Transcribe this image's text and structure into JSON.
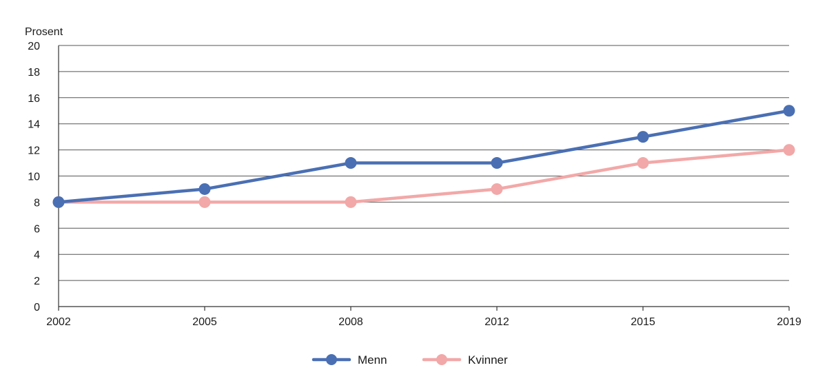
{
  "chart_data": {
    "type": "line",
    "ylabel": "Prosent",
    "xlabel": "",
    "title": "",
    "categories": [
      "2002",
      "2005",
      "2008",
      "2012",
      "2015",
      "2019"
    ],
    "ylim": [
      0,
      20
    ],
    "yticks": [
      0,
      2,
      4,
      6,
      8,
      10,
      12,
      14,
      16,
      18,
      20
    ],
    "grid": true,
    "legend_position": "bottom-center",
    "series": [
      {
        "name": "Menn",
        "color": "#4a6fb3",
        "values": [
          8,
          9,
          11,
          11,
          13,
          15
        ]
      },
      {
        "name": "Kvinner",
        "color": "#f2a8a8",
        "values": [
          8,
          8,
          8,
          9,
          11,
          12
        ]
      }
    ]
  }
}
